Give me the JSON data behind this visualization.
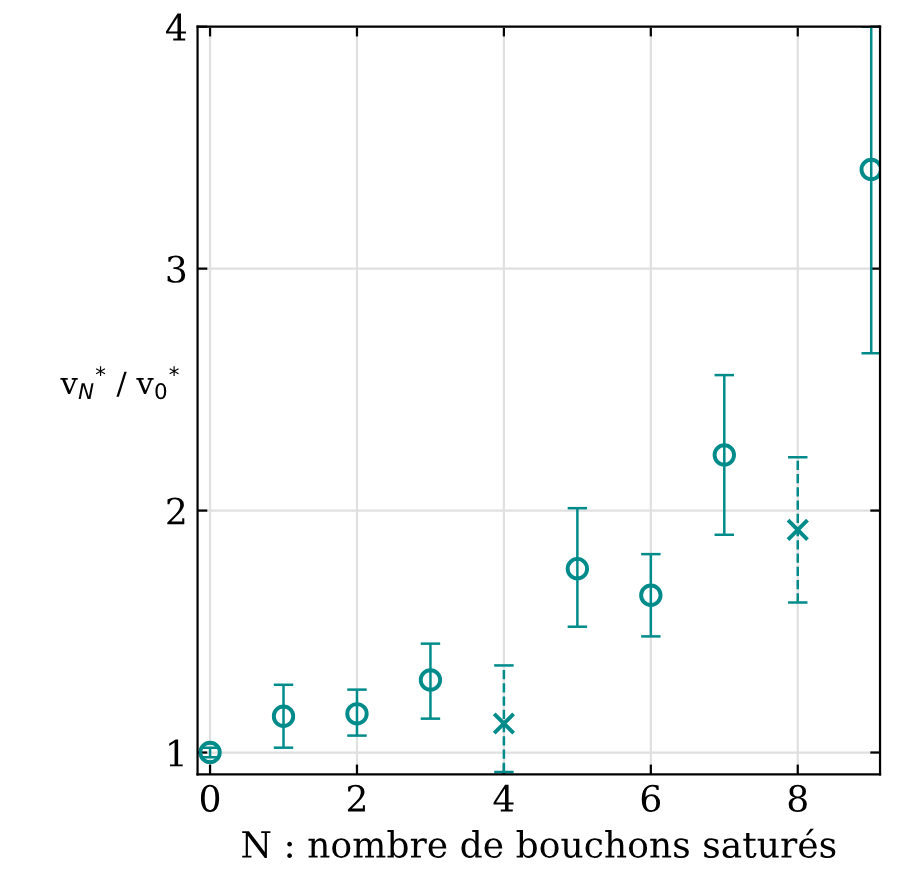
{
  "chart_data": {
    "type": "scatter",
    "xlabel": "N : nombre de bouchons saturés",
    "ylabel": "v$_{N}$$^{*}$ / v$_{0}$$^{*}$",
    "xlim": [
      -0.17,
      9.12
    ],
    "xticks": [
      0,
      2,
      4,
      6,
      8
    ],
    "ylim": [
      0.91,
      4
    ],
    "yticks": [
      1,
      2,
      3,
      4
    ],
    "grid": true,
    "series": [
      {
        "x": [
          0,
          1,
          2,
          3,
          5,
          6,
          7,
          9
        ],
        "values": [
          1.0,
          1.15,
          1.16,
          1.3,
          1.76,
          1.65,
          2.23,
          3.41
        ],
        "errors": [
          [
            0.98,
            1.02
          ],
          [
            1.02,
            1.28
          ],
          [
            1.07,
            1.26
          ],
          [
            1.14,
            1.45
          ],
          [
            1.52,
            2.01
          ],
          [
            1.48,
            1.82
          ],
          [
            1.9,
            2.56
          ],
          [
            2.65,
            4.0
          ]
        ],
        "color": "#008b8b",
        "marker": "circle",
        "line_style": "solid"
      },
      {
        "x": [
          4,
          8
        ],
        "values": [
          1.12,
          1.92
        ],
        "errors": [
          [
            0.92,
            1.36
          ],
          [
            1.62,
            2.22
          ]
        ],
        "color": "#008b8b",
        "marker": "cross",
        "line_style": "dashed"
      }
    ]
  }
}
